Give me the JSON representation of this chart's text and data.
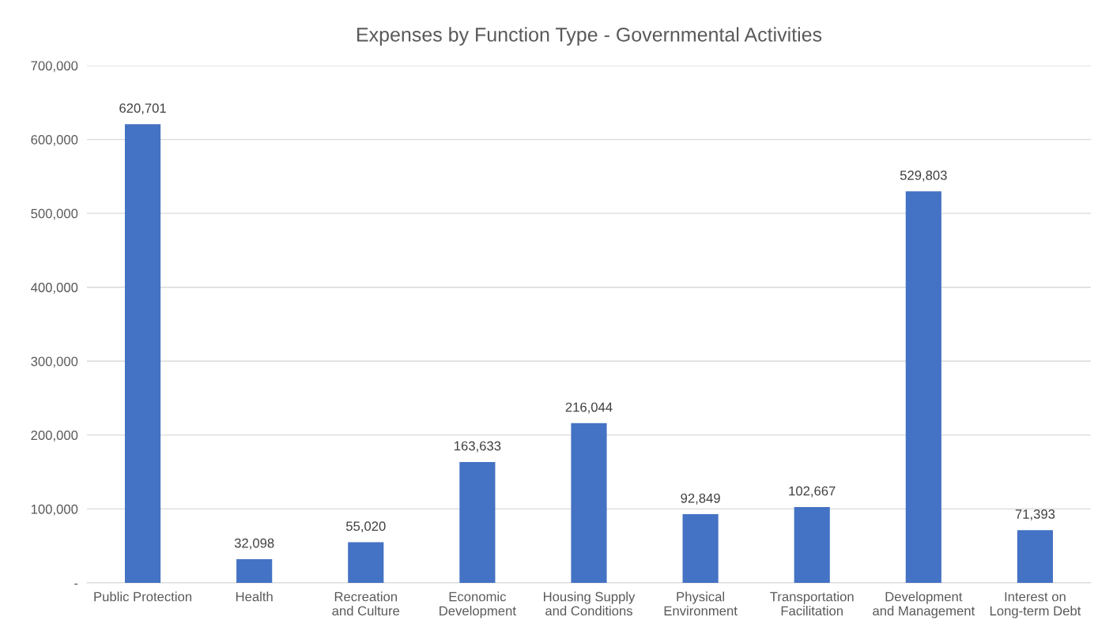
{
  "chart_data": {
    "type": "bar",
    "title": "Expenses by Function Type - Governmental Activities",
    "categories": [
      "Public Protection",
      "Health",
      "Recreation and Culture",
      "Economic Development",
      "Housing Supply and Conditions",
      "Physical Environment",
      "Transportation Facilitation",
      "Development and Management",
      "Interest on Long-term Debt"
    ],
    "values": [
      620701,
      32098,
      55020,
      163633,
      216044,
      92849,
      102667,
      529803,
      71393
    ],
    "value_labels": [
      "620,701",
      "32,098",
      "55,020",
      "163,633",
      "216,044",
      "92,849",
      "102,667",
      "529,803",
      "71,393"
    ],
    "color": "#4472c4",
    "ylim": [
      0,
      700000
    ],
    "yticks": [
      {
        "value": 0,
        "label": "-"
      },
      {
        "value": 100000,
        "label": "100,000"
      },
      {
        "value": 200000,
        "label": "200,000"
      },
      {
        "value": 300000,
        "label": "300,000"
      },
      {
        "value": 400000,
        "label": "400,000"
      },
      {
        "value": 500000,
        "label": "500,000"
      },
      {
        "value": 600000,
        "label": "600,000"
      },
      {
        "value": 700000,
        "label": "700,000"
      }
    ],
    "grid": "y",
    "legend": false
  }
}
